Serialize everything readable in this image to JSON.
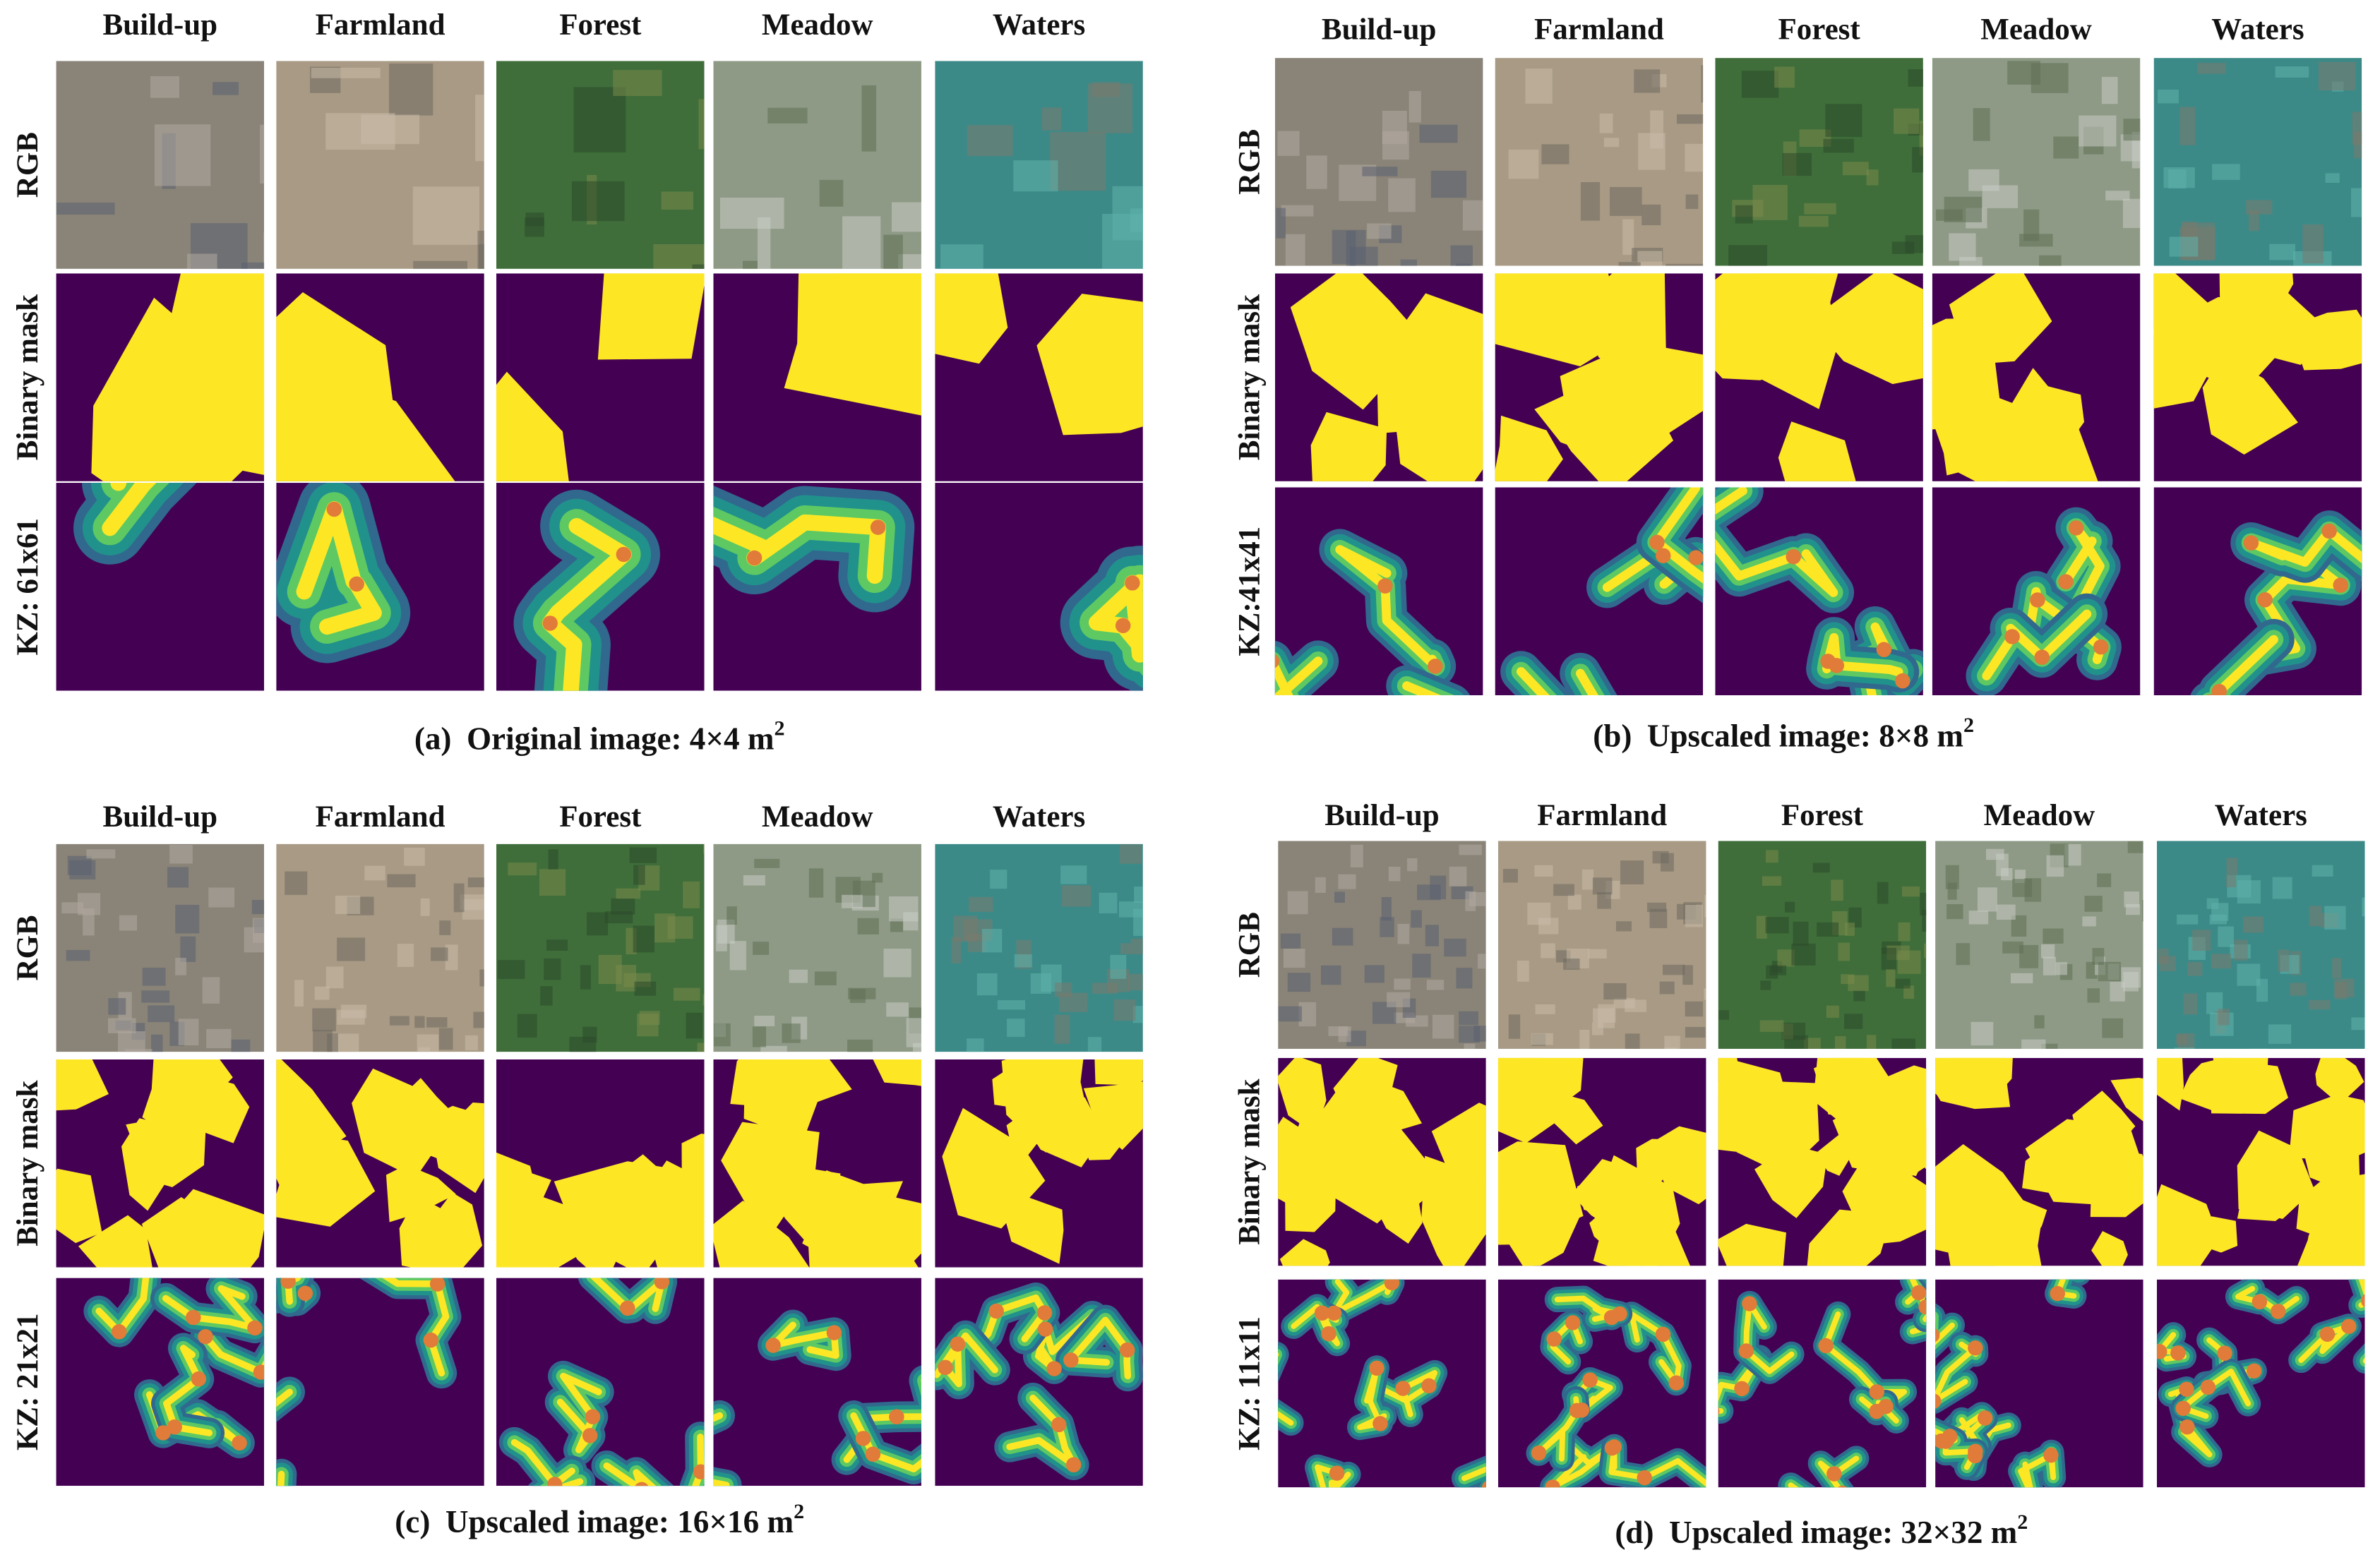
{
  "panels": [
    {
      "columns": [
        "Build-up",
        "Farmland",
        "Forest",
        "Meadow",
        "Waters"
      ],
      "row_labels": [
        "RGB",
        "Binary mask",
        "KZ: 61x61"
      ],
      "caption": {
        "label": "(a)",
        "text": "Original image: 4×4 m",
        "superscript": "2"
      }
    },
    {
      "columns": [
        "Build-up",
        "Farmland",
        "Forest",
        "Meadow",
        "Waters"
      ],
      "row_labels": [
        "RGB",
        "Binary mask",
        "KZ:41x41"
      ],
      "caption": {
        "label": "(b)",
        "text": "Upscaled image: 8×8 m",
        "superscript": "2"
      }
    },
    {
      "columns": [
        "Build-up",
        "Farmland",
        "Forest",
        "Meadow",
        "Waters"
      ],
      "row_labels": [
        "RGB",
        "Binary mask",
        "KZ: 21x21"
      ],
      "caption": {
        "label": "(c)",
        "text": "Upscaled image: 16×16 m",
        "superscript": "2"
      }
    },
    {
      "columns": [
        "Build-up",
        "Farmland",
        "Forest",
        "Meadow",
        "Waters"
      ],
      "row_labels": [
        "RGB",
        "Binary mask",
        "KZ: 11x11"
      ],
      "caption": {
        "label": "(d)",
        "text": "Upscaled image: 32×32 m",
        "superscript": "2"
      }
    }
  ]
}
